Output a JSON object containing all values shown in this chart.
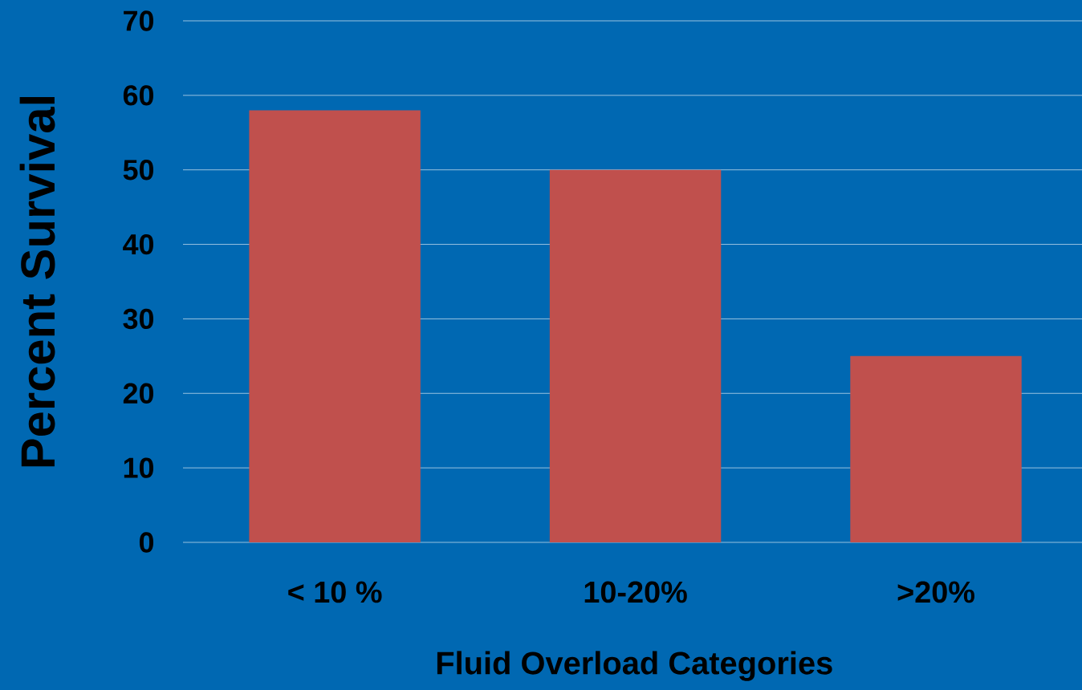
{
  "chart_data": {
    "type": "bar",
    "xlabel": "Fluid Overload Categories",
    "ylabel": "Percent Survival",
    "categories": [
      "< 10 %",
      "10-20%",
      ">20%"
    ],
    "values": [
      58,
      50,
      25
    ],
    "color": "#c0504d",
    "ylim": [
      0,
      70
    ],
    "yticks": [
      0,
      10,
      20,
      30,
      40,
      50,
      60,
      70
    ],
    "grid": "y"
  }
}
